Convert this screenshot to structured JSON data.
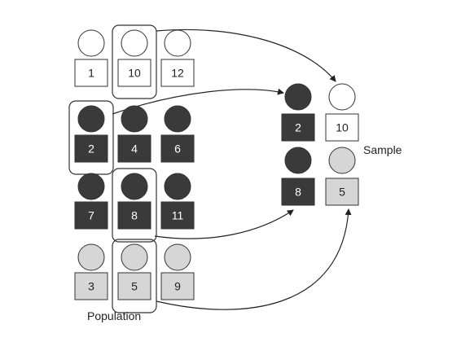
{
  "labels": {
    "population": "Population",
    "sample": "Sample"
  },
  "colors": {
    "white": "#ffffff",
    "dark": "#3a3a3a",
    "light": "#d6d6d6",
    "stroke": "#333333",
    "text_on_dark": "#ffffff",
    "text_on_light": "#222222"
  },
  "population": {
    "rows": [
      {
        "tone": "white",
        "members": [
          "1",
          "10",
          "12"
        ]
      },
      {
        "tone": "dark",
        "members": [
          "2",
          "4",
          "6"
        ]
      },
      {
        "tone": "dark",
        "members": [
          "7",
          "8",
          "11"
        ]
      },
      {
        "tone": "light",
        "members": [
          "3",
          "5",
          "9"
        ]
      }
    ],
    "selected": [
      "10",
      "2",
      "8",
      "5"
    ]
  },
  "sample": {
    "rows": [
      {
        "members": [
          {
            "id": "2",
            "tone": "dark"
          },
          {
            "id": "10",
            "tone": "white"
          }
        ]
      },
      {
        "members": [
          {
            "id": "8",
            "tone": "dark"
          },
          {
            "id": "5",
            "tone": "light"
          }
        ]
      }
    ]
  }
}
